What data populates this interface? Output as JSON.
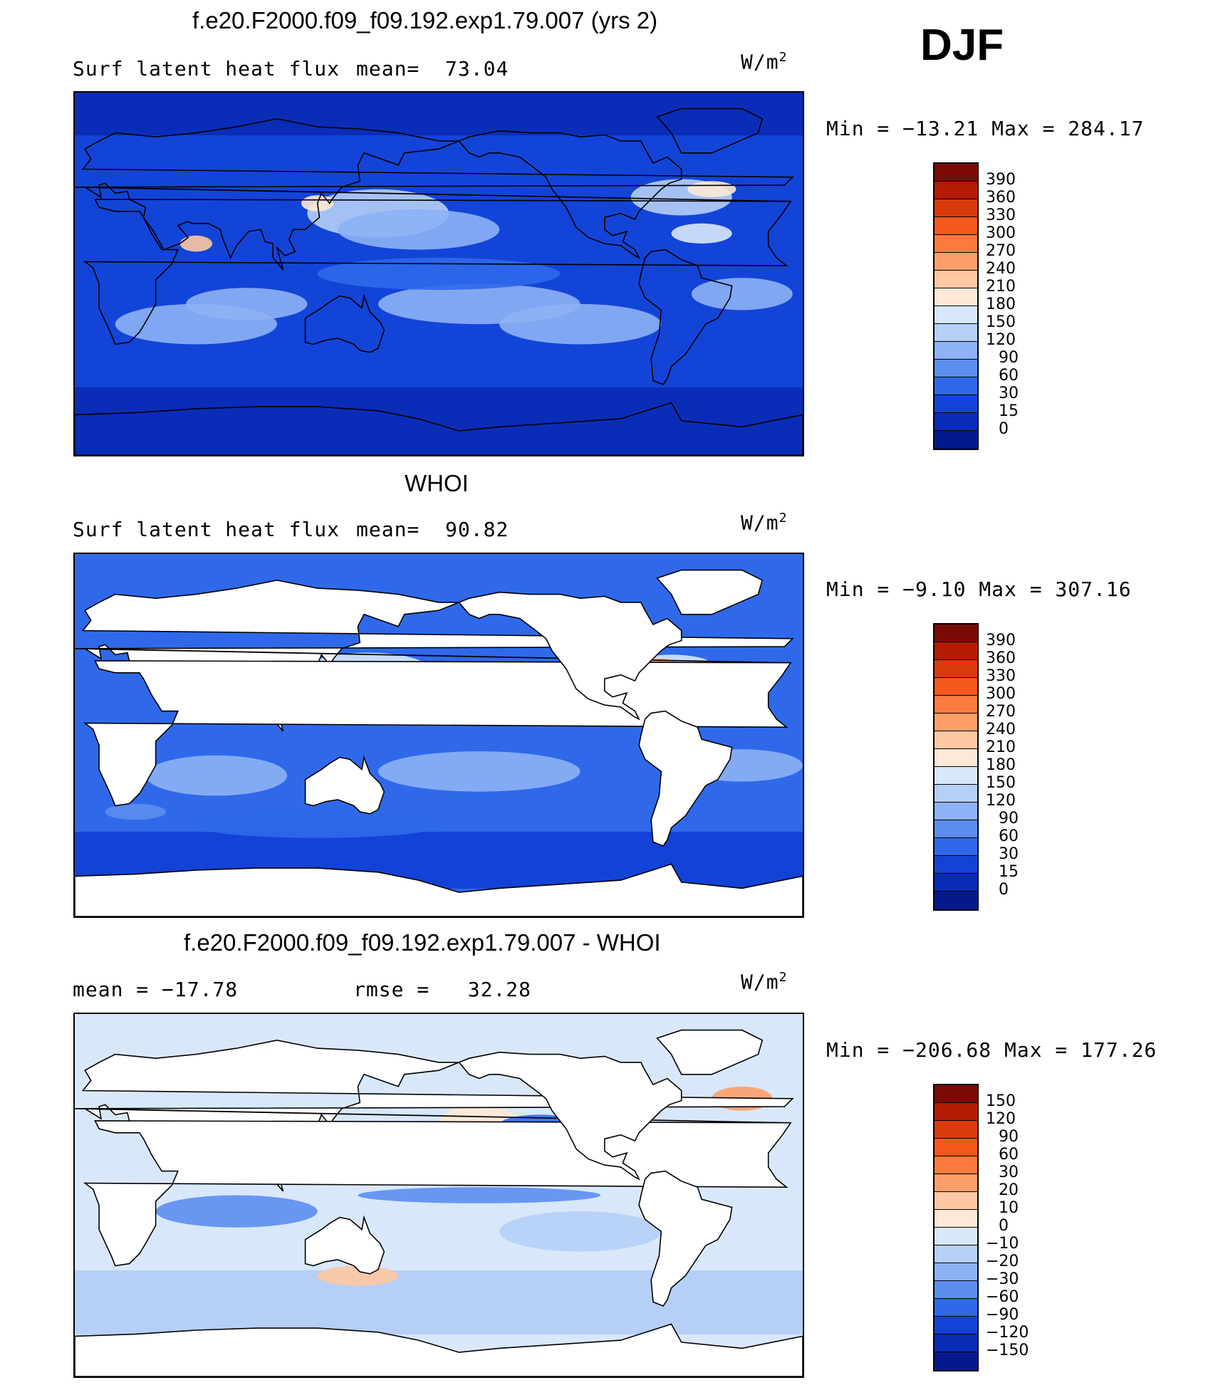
{
  "figure": {
    "season": "DJF"
  },
  "chart_data": [
    {
      "type": "heatmap",
      "title": "f.e20.F2000.f09_f09.192.exp1.79.007 (yrs 2)",
      "left_label": "Surf latent heat flux",
      "stat1_label": "mean=",
      "stat1_value": "73.04",
      "units_base": "W/m",
      "units_exp": "2",
      "min_max_text": "Min  =  −13.21  Max  =  284.17",
      "colorbar_levels": [
        "390",
        "360",
        "330",
        "300",
        "270",
        "240",
        "210",
        "180",
        "150",
        "120",
        "90",
        "60",
        "30",
        "15",
        "0"
      ],
      "colorbar_colors": [
        "#7a0a06",
        "#b21a04",
        "#d93a0e",
        "#f4581c",
        "#fb7a3c",
        "#fc9e6a",
        "#fdc8a2",
        "#fde9d6",
        "#d8e8fa",
        "#b6cff7",
        "#8db2f5",
        "#5c8ef0",
        "#2f69ea",
        "#1342d6",
        "#0a2db8",
        "#041a8c"
      ],
      "show_land": false
    },
    {
      "type": "heatmap",
      "title": "WHOI",
      "left_label": "Surf latent heat flux",
      "stat1_label": "mean=",
      "stat1_value": "90.82",
      "units_base": "W/m",
      "units_exp": "2",
      "min_max_text": "Min  =   −9.10  Max  =  307.16",
      "colorbar_levels": [
        "390",
        "360",
        "330",
        "300",
        "270",
        "240",
        "210",
        "180",
        "150",
        "120",
        "90",
        "60",
        "30",
        "15",
        "0"
      ],
      "colorbar_colors": [
        "#7a0a06",
        "#b21a04",
        "#d93a0e",
        "#f4581c",
        "#fb7a3c",
        "#fc9e6a",
        "#fdc8a2",
        "#fde9d6",
        "#d8e8fa",
        "#b6cff7",
        "#8db2f5",
        "#5c8ef0",
        "#2f69ea",
        "#1342d6",
        "#0a2db8",
        "#041a8c"
      ],
      "show_land": true
    },
    {
      "type": "heatmap",
      "title": "f.e20.F2000.f09_f09.192.exp1.79.007 - WHOI",
      "left_label": "mean  =  −17.78",
      "stat1_label": "rmse  =",
      "stat1_value": "32.28",
      "units_base": "W/m",
      "units_exp": "2",
      "min_max_text": "Min  =  −206.68  Max  =  177.26",
      "colorbar_levels": [
        "150",
        "120",
        "90",
        "60",
        "30",
        "20",
        "10",
        "0",
        "−10",
        "−20",
        "−30",
        "−60",
        "−90",
        "−120",
        "−150"
      ],
      "colorbar_colors": [
        "#7a0a06",
        "#b21a04",
        "#d93a0e",
        "#f4581c",
        "#fb7a3c",
        "#fc9e6a",
        "#fdc8a2",
        "#fde9d6",
        "#d8e8fa",
        "#b6cff7",
        "#8db2f5",
        "#5c8ef0",
        "#2f69ea",
        "#1342d6",
        "#0a2db8",
        "#041a8c"
      ],
      "show_land": true
    }
  ]
}
